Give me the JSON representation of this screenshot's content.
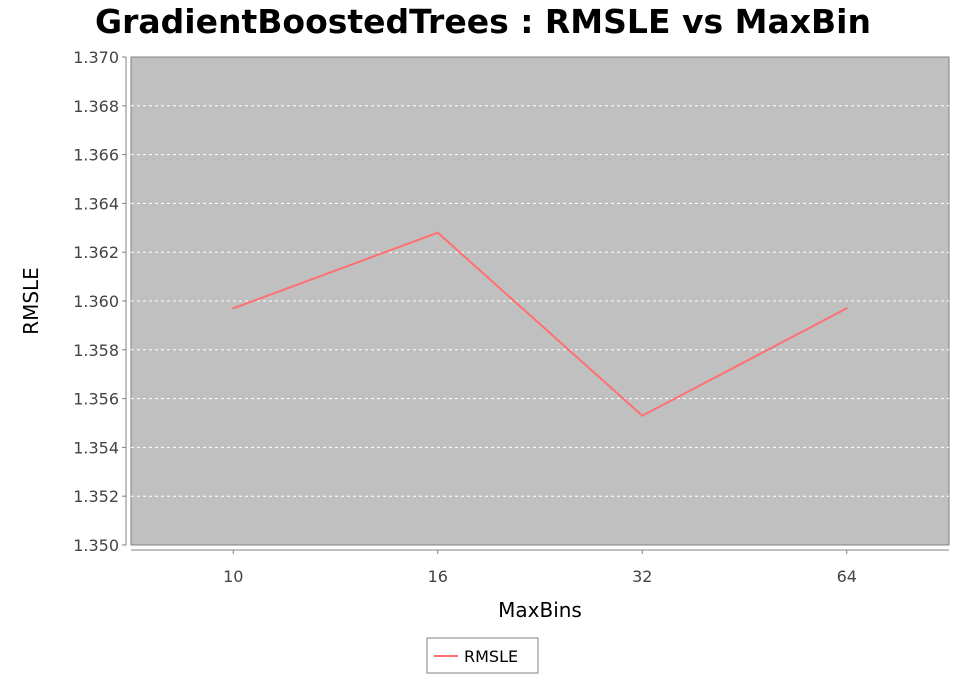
{
  "chart_data": {
    "type": "line",
    "title": "GradientBoostedTrees : RMSLE vs MaxBin",
    "xlabel": "MaxBins",
    "ylabel": "RMSLE",
    "categories": [
      "10",
      "16",
      "32",
      "64"
    ],
    "series": [
      {
        "name": "RMSLE",
        "values": [
          1.3597,
          1.3628,
          1.3553,
          1.3597
        ]
      }
    ],
    "ylim": [
      1.35,
      1.37
    ],
    "yticks": [
      "1.350",
      "1.352",
      "1.354",
      "1.356",
      "1.358",
      "1.360",
      "1.362",
      "1.364",
      "1.366",
      "1.368",
      "1.370"
    ],
    "grid": true,
    "legend": "bottom-center",
    "colors": {
      "plot_background": "#c0c0c0",
      "gridline": "#ffffff",
      "series": "#ff7070",
      "axis": "#808080"
    }
  }
}
